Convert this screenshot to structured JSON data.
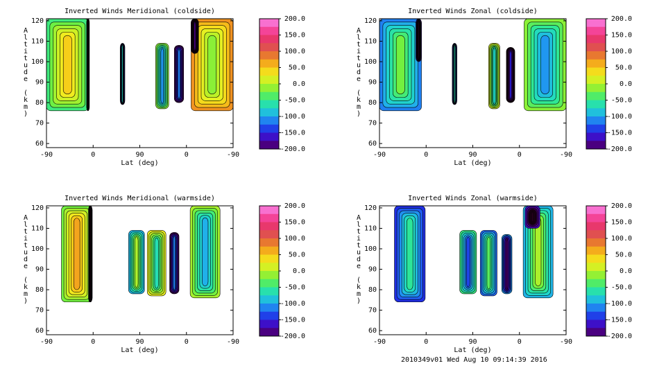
{
  "footer": "2010349v01 Wed Aug 10 09:14:39 2016",
  "chart_data": [
    {
      "type": "heatmap",
      "title": "Inverted Winds Meridional (coldside)",
      "xlabel": "Lat (deg)",
      "ylabel": "Altitude (km)",
      "x_tick_labels": [
        "-90",
        "0",
        "90",
        "0",
        "-90"
      ],
      "y_ticks": [
        60,
        70,
        80,
        90,
        100,
        110,
        120
      ],
      "ylim": [
        58,
        121
      ],
      "colorbar_ticks": [
        "200.0",
        "150.0",
        "100.0",
        "50.0",
        "0.0",
        "-50.0",
        "-100.0",
        "-150.0",
        "-200.0"
      ],
      "colorbar_range": [
        -200,
        200
      ],
      "regions": [
        {
          "x0": 0.0,
          "x1": 0.225,
          "y0": 76,
          "y1": 121,
          "value": 10
        },
        {
          "x0": 0.215,
          "x1": 0.23,
          "y0": 76,
          "y1": 121,
          "value": -220
        },
        {
          "x0": 0.395,
          "x1": 0.42,
          "y0": 79,
          "y1": 109,
          "value": -110
        },
        {
          "x0": 0.585,
          "x1": 0.655,
          "y0": 77,
          "y1": 109,
          "value": -70
        },
        {
          "x0": 0.685,
          "x1": 0.735,
          "y0": 80,
          "y1": 108,
          "value": -150
        },
        {
          "x0": 0.775,
          "x1": 1.0,
          "y0": 76,
          "y1": 121,
          "value": 20
        },
        {
          "x0": 0.775,
          "x1": 0.815,
          "y0": 104,
          "y1": 121,
          "value": -220
        }
      ]
    },
    {
      "type": "heatmap",
      "title": "Inverted Winds Zonal (coldside)",
      "xlabel": "Lat (deg)",
      "ylabel": "Altitude (km)",
      "x_tick_labels": [
        "-90",
        "0",
        "90",
        "0",
        "-90"
      ],
      "y_ticks": [
        60,
        70,
        80,
        90,
        100,
        110,
        120
      ],
      "ylim": [
        58,
        121
      ],
      "colorbar_ticks": [
        "200.0",
        "150.0",
        "100.0",
        "50.0",
        "0.0",
        "-50.0",
        "-100.0",
        "-150.0",
        "-200.0"
      ],
      "colorbar_range": [
        -200,
        200
      ],
      "regions": [
        {
          "x0": 0.0,
          "x1": 0.225,
          "y0": 76,
          "y1": 121,
          "value": -60
        },
        {
          "x0": 0.195,
          "x1": 0.225,
          "y0": 100,
          "y1": 121,
          "value": -220
        },
        {
          "x0": 0.39,
          "x1": 0.415,
          "y0": 79,
          "y1": 109,
          "value": -100
        },
        {
          "x0": 0.585,
          "x1": 0.645,
          "y0": 77,
          "y1": 109,
          "value": -40
        },
        {
          "x0": 0.68,
          "x1": 0.725,
          "y0": 80,
          "y1": 107,
          "value": -190
        },
        {
          "x0": 0.775,
          "x1": 1.0,
          "y0": 76,
          "y1": 121,
          "value": -70
        }
      ]
    },
    {
      "type": "heatmap",
      "title": "Inverted Winds Meridional (warmside)",
      "xlabel": "Lat (deg)",
      "ylabel": "Altitude (km)",
      "x_tick_labels": [
        "-90",
        "0",
        "90",
        "0",
        "-90"
      ],
      "y_ticks": [
        60,
        70,
        80,
        90,
        100,
        110,
        120
      ],
      "ylim": [
        58,
        121
      ],
      "colorbar_ticks": [
        "200.0",
        "150.0",
        "100.0",
        "50.0",
        "0.0",
        "-50.0",
        "-100.0",
        "-150.0",
        "-200.0"
      ],
      "colorbar_range": [
        -200,
        200
      ],
      "regions": [
        {
          "x0": 0.08,
          "x1": 0.245,
          "y0": 74,
          "y1": 121,
          "value": 30
        },
        {
          "x0": 0.225,
          "x1": 0.245,
          "y0": 74,
          "y1": 121,
          "value": -220
        },
        {
          "x0": 0.44,
          "x1": 0.525,
          "y0": 78,
          "y1": 109,
          "value": -40
        },
        {
          "x0": 0.54,
          "x1": 0.64,
          "y0": 77,
          "y1": 109,
          "value": -30
        },
        {
          "x0": 0.66,
          "x1": 0.71,
          "y0": 78,
          "y1": 108,
          "value": -150
        },
        {
          "x0": 0.77,
          "x1": 0.93,
          "y0": 76,
          "y1": 121,
          "value": -60
        }
      ]
    },
    {
      "type": "heatmap",
      "title": "Inverted Winds Zonal (warmside)",
      "xlabel": "Lat (deg)",
      "ylabel": "Altitude (km)",
      "x_tick_labels": [
        "-90",
        "0",
        "90",
        "0",
        "-90"
      ],
      "y_ticks": [
        60,
        70,
        80,
        90,
        100,
        110,
        120
      ],
      "ylim": [
        58,
        121
      ],
      "colorbar_ticks": [
        "200.0",
        "150.0",
        "100.0",
        "50.0",
        "0.0",
        "-50.0",
        "-100.0",
        "-150.0",
        "-200.0"
      ],
      "colorbar_range": [
        -200,
        200
      ],
      "regions": [
        {
          "x0": 0.08,
          "x1": 0.245,
          "y0": 74,
          "y1": 121,
          "value": -90
        },
        {
          "x0": 0.43,
          "x1": 0.52,
          "y0": 78,
          "y1": 109,
          "value": -100
        },
        {
          "x0": 0.54,
          "x1": 0.63,
          "y0": 77,
          "y1": 109,
          "value": -70
        },
        {
          "x0": 0.655,
          "x1": 0.71,
          "y0": 78,
          "y1": 107,
          "value": -160
        },
        {
          "x0": 0.77,
          "x1": 0.93,
          "y0": 76,
          "y1": 121,
          "value": -40
        },
        {
          "x0": 0.78,
          "x1": 0.86,
          "y0": 110,
          "y1": 121,
          "value": -220
        }
      ]
    }
  ]
}
